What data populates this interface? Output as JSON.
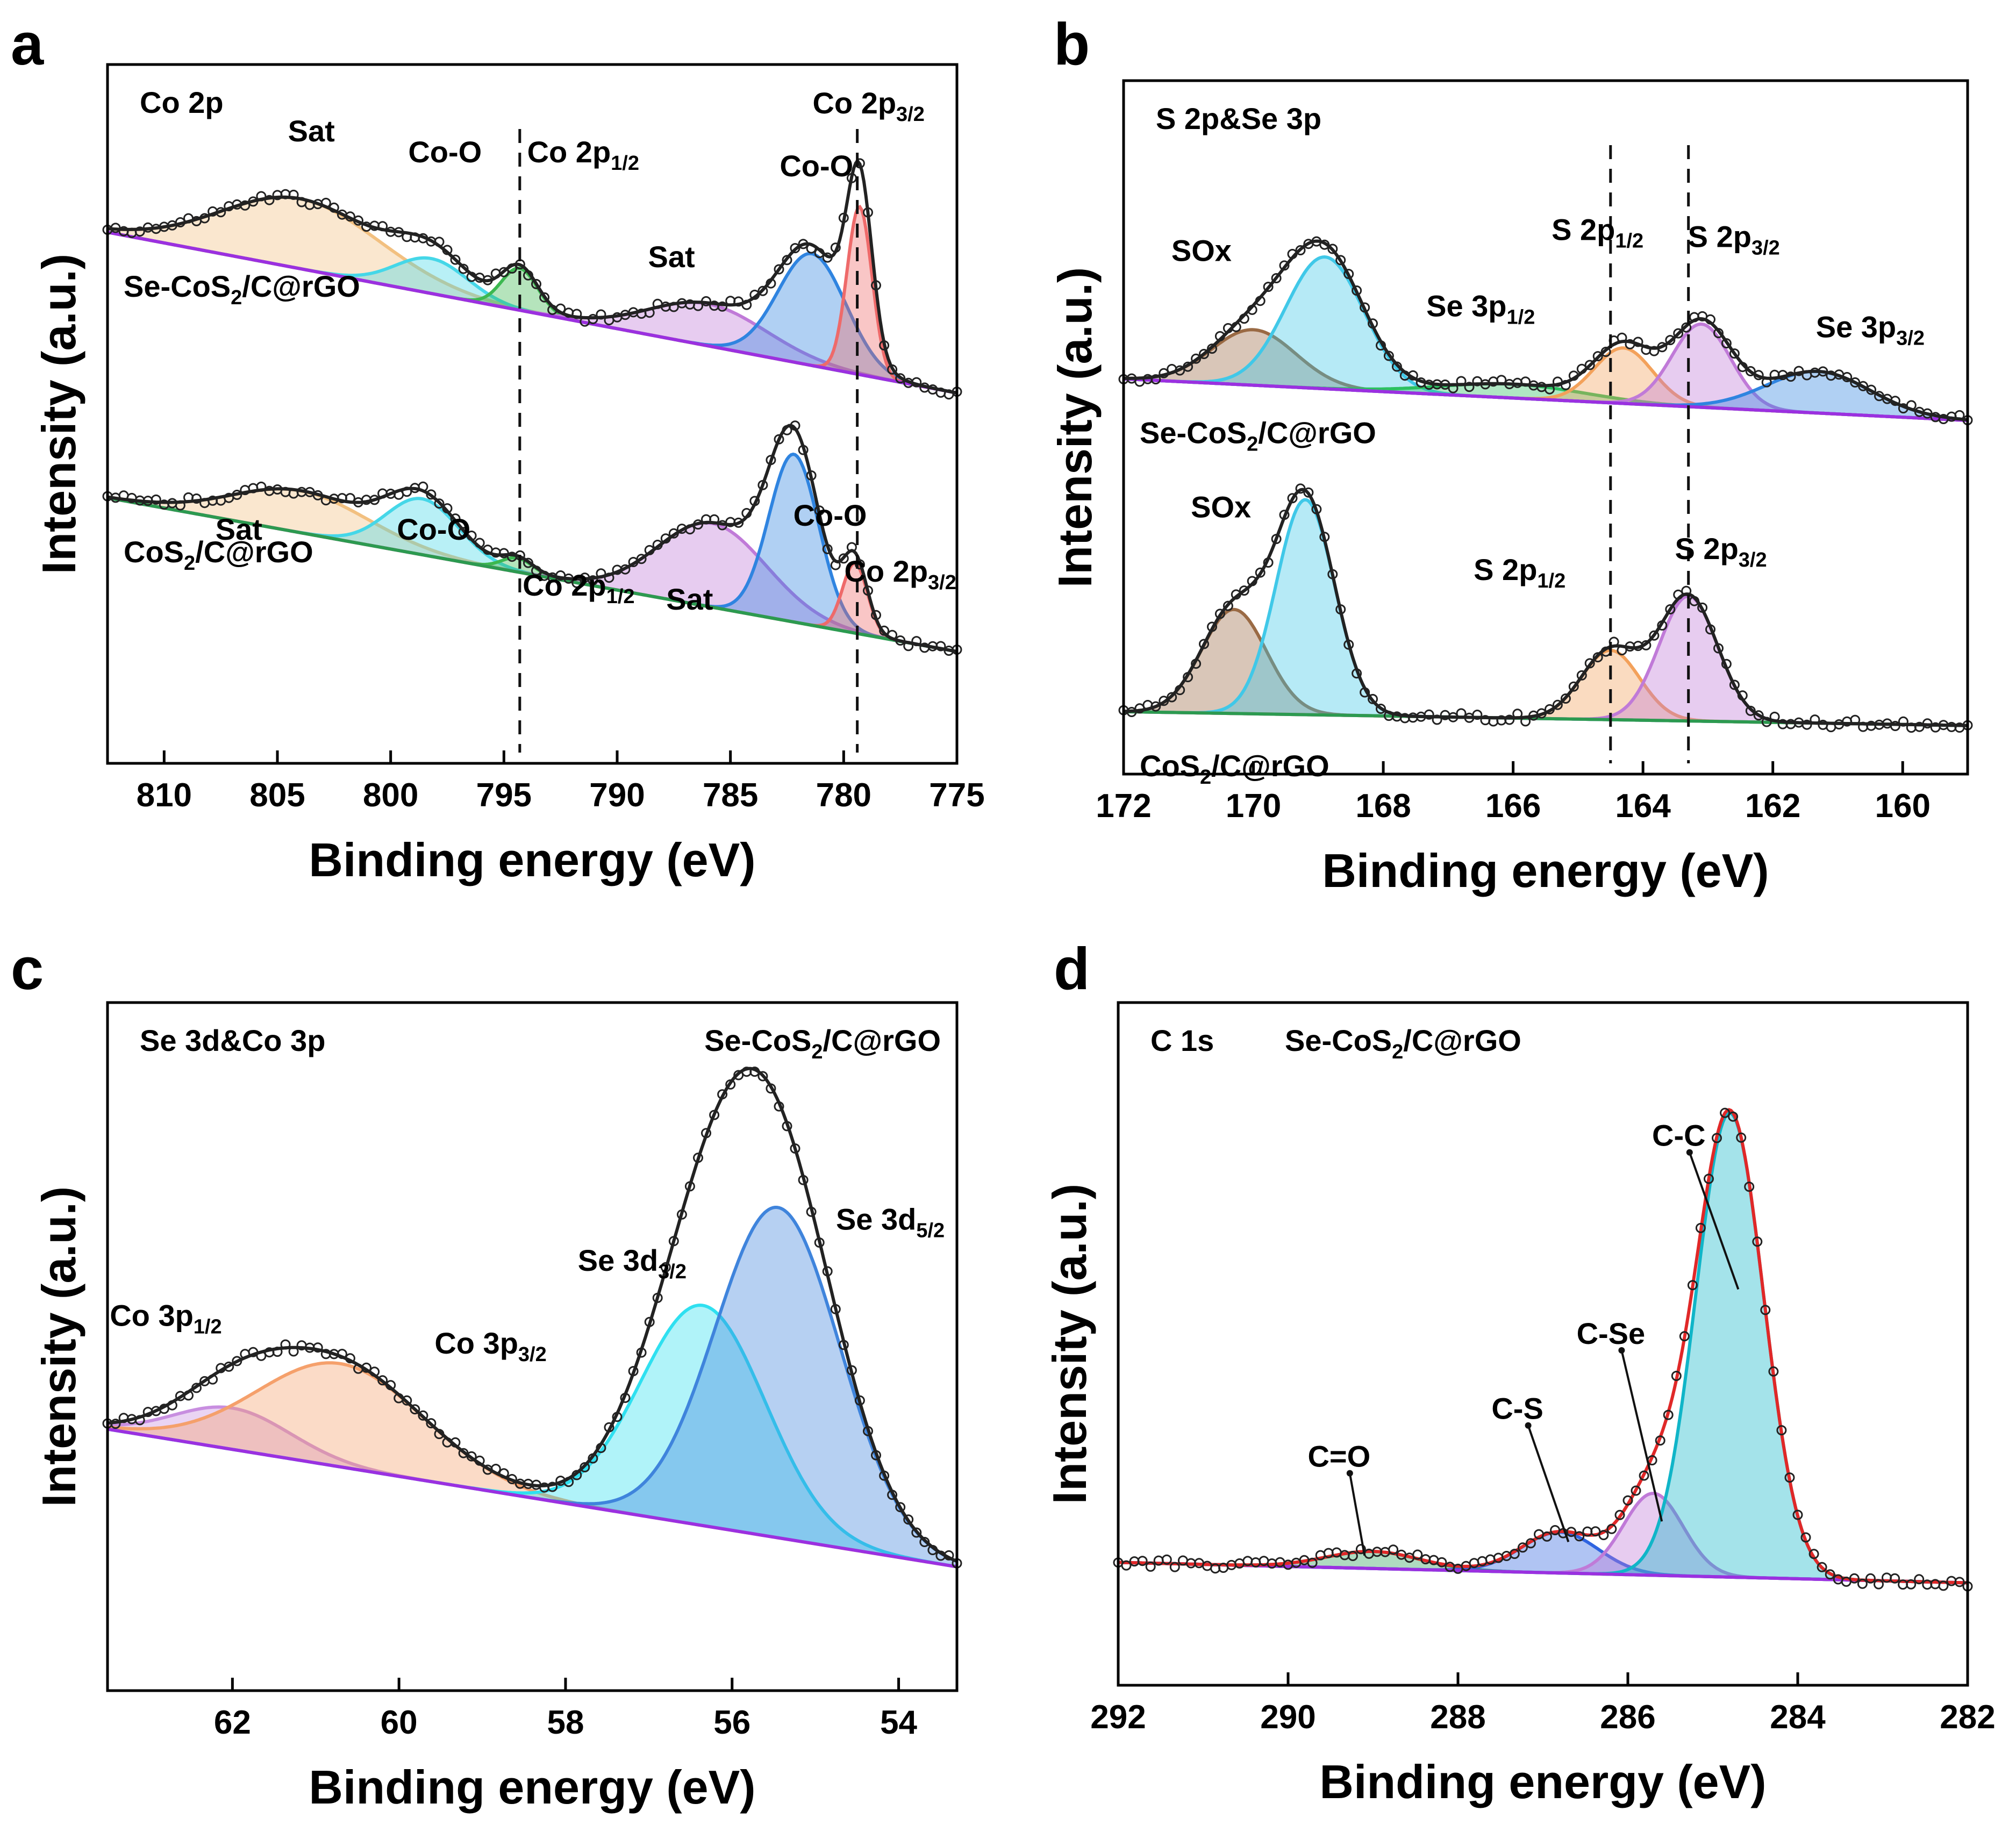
{
  "figure": {
    "panels": [
      "a",
      "b",
      "c",
      "d"
    ]
  },
  "chart_data": [
    {
      "id": "a",
      "type": "line",
      "subtype": "xps-spectrum",
      "panel_label": "a",
      "corner_label": "Co 2p",
      "xlabel": "Binding energy (eV)",
      "ylabel": "Intensity (a.u.)",
      "xlim": [
        812.5,
        775
      ],
      "ylim": [
        0,
        100
      ],
      "xticks": [
        810,
        805,
        800,
        795,
        790,
        785,
        780,
        775
      ],
      "y_tick_labels": false,
      "dashed_lines": [
        794.3,
        779.4
      ],
      "spectra": [
        {
          "name": "Se-CoS2/C@rGO",
          "name_base": "Se-CoS",
          "name_sub": "2",
          "name_tail": "/C@rGO",
          "baseline": [
            [
              812.5,
              76
            ],
            [
              775,
              53
            ]
          ],
          "components": [
            {
              "label": "Sat",
              "center": 804,
              "height": 10,
              "width": 3.5,
              "color": "#f2c080"
            },
            {
              "label": "Co-O",
              "center": 798.2,
              "height": 5,
              "width": 1.6,
              "color": "#45d7e8"
            },
            {
              "label": "Co 2p1/2",
              "center": 794.3,
              "height": 6,
              "width": 0.8,
              "color": "#3cb850"
            },
            {
              "label": "Sat",
              "center": 786,
              "height": 6,
              "width": 2.6,
              "color": "#c07ad8"
            },
            {
              "label": "Co-O",
              "center": 781.4,
              "height": 16,
              "width": 1.5,
              "color": "#2f84e0"
            },
            {
              "label": "Co 2p3/2",
              "center": 779.3,
              "height": 24,
              "width": 0.55,
              "color": "#ee6a6a"
            }
          ]
        },
        {
          "name": "CoS2/C@rGO",
          "name_base": "CoS",
          "name_sub": "2",
          "name_tail": "/C@rGO",
          "baseline": [
            [
              812.5,
              38
            ],
            [
              775,
              16
            ]
          ],
          "components": [
            {
              "label": "Sat",
              "center": 804,
              "height": 6,
              "width": 3.0,
              "color": "#f2c080"
            },
            {
              "label": "Co-O",
              "center": 798.6,
              "height": 8,
              "width": 1.6,
              "color": "#45d7e8"
            },
            {
              "label": "Co 2p1/2",
              "center": 794.4,
              "height": 2,
              "width": 0.7,
              "color": "#3cb850"
            },
            {
              "label": "Sat",
              "center": 785.8,
              "height": 12,
              "width": 2.4,
              "color": "#c07ad8"
            },
            {
              "label": "Co-O",
              "center": 782.2,
              "height": 24,
              "width": 1.1,
              "color": "#2f84e0"
            },
            {
              "label": "Co 2p3/2",
              "center": 779.5,
              "height": 10,
              "width": 0.55,
              "color": "#ee6a6a"
            }
          ]
        }
      ],
      "annotations": [
        {
          "text": "Sat",
          "x": 803.5,
          "y": 89
        },
        {
          "text": "Co-O",
          "x": 797.6,
          "y": 86
        },
        {
          "text": "Co 2p",
          "sub": "1/2",
          "x": 791.5,
          "y": 86
        },
        {
          "text": "Sat",
          "x": 787.6,
          "y": 71
        },
        {
          "text": "Co-O",
          "x": 781.2,
          "y": 84
        },
        {
          "text": "Co 2p",
          "sub": "3/2",
          "x": 778.9,
          "y": 93
        },
        {
          "text": "Sat",
          "x": 806.7,
          "y": 32
        },
        {
          "text": "Co-O",
          "x": 798.1,
          "y": 32
        },
        {
          "text": "Co 2p",
          "sub": "1/2",
          "x": 791.7,
          "y": 24
        },
        {
          "text": "Sat",
          "x": 786.8,
          "y": 22
        },
        {
          "text": "Co-O",
          "x": 780.6,
          "y": 34
        },
        {
          "text": "Co 2p",
          "sub": "3/2",
          "x": 777.5,
          "y": 26
        }
      ]
    },
    {
      "id": "b",
      "type": "line",
      "subtype": "xps-spectrum",
      "panel_label": "b",
      "corner_label": "S 2p&Se 3p",
      "xlabel": "Binding energy (eV)",
      "ylabel": "Intensity (a.u.)",
      "xlim": [
        172,
        159
      ],
      "ylim": [
        0,
        100
      ],
      "xticks": [
        172,
        170,
        168,
        166,
        164,
        162,
        160
      ],
      "y_tick_labels": false,
      "dashed_lines": [
        164.5,
        163.3
      ],
      "spectra": [
        {
          "name": "Se-CoS2/C@rGO",
          "name_base": "Se-CoS",
          "name_sub": "2",
          "name_tail": "/C@rGO",
          "baseline": [
            [
              172,
              57
            ],
            [
              159,
              51
            ]
          ],
          "components": [
            {
              "label": "SOx",
              "center": 170,
              "height": 8,
              "width": 0.65,
              "color": "#9a6a44"
            },
            {
              "label": "SOx",
              "center": 168.9,
              "height": 19,
              "width": 0.6,
              "color": "#40c8e8"
            },
            {
              "label": "Se 3p1/2",
              "center": 166,
              "height": 2,
              "width": 1.1,
              "color": "#2cc060"
            },
            {
              "label": "S 2p1/2",
              "center": 164.3,
              "height": 8,
              "width": 0.45,
              "color": "#f3a15a"
            },
            {
              "label": "S 2p3/2",
              "center": 163.1,
              "height": 12,
              "width": 0.45,
              "color": "#c07ad8"
            },
            {
              "label": "Se 3p3/2",
              "center": 161.3,
              "height": 6,
              "width": 0.8,
              "color": "#2f84e0"
            }
          ]
        },
        {
          "name": "CoS2/C@rGO",
          "name_base": "CoS",
          "name_sub": "2",
          "name_tail": "/C@rGO",
          "baseline": [
            [
              172,
              9
            ],
            [
              159,
              7
            ]
          ],
          "components": [
            {
              "label": "SOx",
              "center": 170.3,
              "height": 15,
              "width": 0.5,
              "color": "#9a6a44"
            },
            {
              "label": "SOx",
              "center": 169.2,
              "height": 31,
              "width": 0.45,
              "color": "#40c8e8"
            },
            {
              "label": "S 2p1/2",
              "center": 164.5,
              "height": 10,
              "width": 0.45,
              "color": "#f3a15a"
            },
            {
              "label": "S 2p3/2",
              "center": 163.3,
              "height": 18,
              "width": 0.45,
              "color": "#c07ad8"
            }
          ]
        }
      ],
      "annotations": [
        {
          "text": "SOx",
          "x": 170.8,
          "y": 74
        },
        {
          "text": "Se 3p",
          "sub": "1/2",
          "x": 166.5,
          "y": 66
        },
        {
          "text": "S 2p",
          "sub": "1/2",
          "x": 164.7,
          "y": 77
        },
        {
          "text": "S 2p",
          "sub": "3/2",
          "x": 162.6,
          "y": 76
        },
        {
          "text": "Se 3p",
          "sub": "3/2",
          "x": 160.5,
          "y": 63
        },
        {
          "text": "SOx",
          "x": 170.5,
          "y": 37
        },
        {
          "text": "S 2p",
          "sub": "1/2",
          "x": 165.9,
          "y": 28
        },
        {
          "text": "S 2p",
          "sub": "3/2",
          "x": 162.8,
          "y": 31
        }
      ]
    },
    {
      "id": "c",
      "type": "line",
      "subtype": "xps-spectrum",
      "panel_label": "c",
      "corner_label": "Se 3d&Co 3p",
      "corner_label_right": "Se-CoS2/C@rGO",
      "corner_label_right_base": "Se-CoS",
      "corner_label_right_sub": "2",
      "corner_label_right_tail": "/C@rGO",
      "xlabel": "Binding energy (eV)",
      "ylabel": "Intensity (a.u.)",
      "xlim": [
        63.5,
        53.3
      ],
      "ylim": [
        0,
        100
      ],
      "xticks": [
        62,
        60,
        58,
        56,
        54
      ],
      "y_tick_labels": false,
      "dashed_lines": [],
      "spectra": [
        {
          "name": "Se-CoS2/C@rGO",
          "baseline": [
            [
              63.5,
              38
            ],
            [
              53.3,
              18
            ]
          ],
          "components": [
            {
              "label": "Co 3p1/2",
              "center": 62,
              "height": 6,
              "width": 0.7,
              "color": "#c88ee0"
            },
            {
              "label": "Co 3p3/2",
              "center": 60.7,
              "height": 15,
              "width": 1.0,
              "color": "#f5a06b"
            },
            {
              "label": "Se 3d3/2",
              "center": 56.35,
              "height": 32,
              "width": 0.75,
              "color": "#2fe0f0"
            },
            {
              "label": "Se 3d5/2",
              "center": 55.45,
              "height": 48,
              "width": 0.75,
              "color": "#3f84dc"
            }
          ]
        }
      ],
      "annotations": [
        {
          "text": "Co 3p",
          "sub": "1/2",
          "x": 62.8,
          "y": 53
        },
        {
          "text": "Co 3p",
          "sub": "3/2",
          "x": 58.9,
          "y": 49
        },
        {
          "text": "Se 3d",
          "sub": "3/2",
          "x": 57.2,
          "y": 61
        },
        {
          "text": "Se 3d",
          "sub": "5/2",
          "x": 54.1,
          "y": 67
        }
      ]
    },
    {
      "id": "d",
      "type": "line",
      "subtype": "xps-spectrum",
      "panel_label": "d",
      "corner_label": "C 1s",
      "corner_label_right": "Se-CoS2/C@rGO",
      "corner_label_right_base": "Se-CoS",
      "corner_label_right_sub": "2",
      "corner_label_right_tail": "/C@rGO",
      "xlabel": "Binding energy (eV)",
      "ylabel": "Intensity (a.u.)",
      "xlim": [
        292,
        282
      ],
      "ylim": [
        0,
        100
      ],
      "xticks": [
        292,
        290,
        288,
        286,
        284,
        282
      ],
      "y_tick_labels": false,
      "dashed_lines": [],
      "spectra": [
        {
          "name": "Se-CoS2/C@rGO",
          "baseline": [
            [
              292,
              18
            ],
            [
              282,
              15
            ]
          ],
          "components": [
            {
              "label": "C=O",
              "center": 289,
              "height": 2.5,
              "width": 0.55,
              "color": "#2ca05a"
            },
            {
              "label": "C-S",
              "center": 286.8,
              "height": 6,
              "width": 0.45,
              "color": "#2f64e0"
            },
            {
              "label": "C-Se",
              "center": 285.7,
              "height": 12,
              "width": 0.35,
              "color": "#c07ad8"
            },
            {
              "label": "C-C",
              "center": 284.8,
              "height": 68,
              "width": 0.4,
              "color": "#10b5c8"
            }
          ]
        }
      ],
      "annotations": [
        {
          "text": "C=O",
          "x": 289.4,
          "y": 32,
          "arrow_to": [
            289.1,
            19
          ]
        },
        {
          "text": "C-S",
          "x": 287.3,
          "y": 39,
          "arrow_to": [
            286.7,
            21
          ]
        },
        {
          "text": "C-Se",
          "x": 286.2,
          "y": 50,
          "arrow_to": [
            285.6,
            24
          ]
        },
        {
          "text": "C-C",
          "x": 285.4,
          "y": 79,
          "arrow_to": [
            284.7,
            58
          ]
        }
      ]
    }
  ]
}
